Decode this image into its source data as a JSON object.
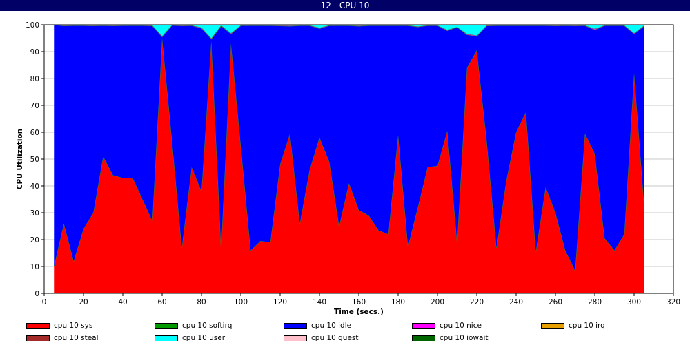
{
  "window": {
    "title": "12 - CPU 10"
  },
  "chart_data": {
    "type": "area",
    "stacked": true,
    "title": "",
    "xlabel": "Time (secs.)",
    "ylabel": "CPU Utilization",
    "xlim": [
      0,
      320
    ],
    "ylim": [
      0,
      100
    ],
    "xticks": [
      0,
      20,
      40,
      60,
      80,
      100,
      120,
      140,
      160,
      180,
      200,
      220,
      240,
      260,
      280,
      300,
      320
    ],
    "yticks": [
      0,
      10,
      20,
      30,
      40,
      50,
      60,
      70,
      80,
      90,
      100
    ],
    "grid": "horizontal",
    "legend_position": "bottom",
    "x": [
      5,
      10,
      15,
      20,
      25,
      30,
      35,
      40,
      45,
      50,
      55,
      60,
      65,
      70,
      75,
      80,
      85,
      90,
      95,
      100,
      105,
      110,
      115,
      120,
      125,
      130,
      135,
      140,
      145,
      150,
      155,
      160,
      165,
      170,
      175,
      180,
      185,
      190,
      195,
      200,
      205,
      210,
      215,
      220,
      225,
      230,
      235,
      240,
      245,
      250,
      255,
      260,
      265,
      270,
      275,
      280,
      285,
      290,
      295,
      300,
      305
    ],
    "series": [
      {
        "name": "cpu 10 sys",
        "color": "#ff0000",
        "values": [
          10,
          26,
          12,
          24,
          30,
          51,
          44,
          43,
          43,
          35,
          27,
          95,
          57,
          17,
          47,
          38,
          94,
          17,
          93,
          55,
          16,
          19.5,
          19,
          48,
          59.5,
          26,
          46,
          58,
          49,
          25,
          41,
          31,
          29,
          23.5,
          22,
          59,
          17.5,
          32,
          47,
          47.5,
          60.5,
          19,
          84,
          90.5,
          57,
          17,
          42,
          60,
          67.5,
          15.5,
          39.5,
          30,
          16,
          8.5,
          59.5,
          52,
          20.5,
          16,
          22,
          82,
          34
        ]
      },
      {
        "name": "cpu 10 softirq",
        "color": "#009900",
        "values": [
          0,
          0,
          0,
          0,
          0,
          0,
          0,
          0,
          0,
          0,
          0,
          0,
          0,
          0,
          0,
          0,
          0,
          0,
          0,
          0,
          0,
          0,
          0,
          0,
          0,
          0,
          0,
          0,
          0,
          0,
          0,
          0,
          0,
          0,
          0,
          0,
          0,
          0,
          0,
          0,
          0,
          0,
          0,
          0,
          0,
          0,
          0,
          0,
          0,
          0,
          0,
          0,
          0,
          0,
          0,
          0,
          0,
          0,
          0,
          0,
          0
        ]
      },
      {
        "name": "cpu 10 idle",
        "color": "#0000ff",
        "values": [
          90,
          73.6,
          87.7,
          75.7,
          69.6,
          48.7,
          55.6,
          56.7,
          56.7,
          64.7,
          72.6,
          0.5,
          42.8,
          82.6,
          52.7,
          60.7,
          0.7,
          82.6,
          3.6,
          44.7,
          83.7,
          80.2,
          80.7,
          51.6,
          40,
          73.7,
          53.7,
          40.6,
          50.7,
          74.7,
          58.7,
          68.5,
          70.7,
          76.2,
          77.7,
          40.7,
          82.2,
          67.2,
          52.7,
          52.2,
          37.3,
          80.1,
          12.3,
          5.2,
          42.6,
          82.7,
          57.7,
          39.7,
          32.2,
          84.2,
          60.2,
          69.6,
          83.7,
          91.1,
          40.2,
          46.1,
          79.2,
          83.7,
          77.7,
          14.6,
          65.5
        ]
      },
      {
        "name": "cpu 10 nice",
        "color": "#ff00ff",
        "values": [
          0,
          0.2,
          0.1,
          0.1,
          0.2,
          0.1,
          0.2,
          0.1,
          0.1,
          0.1,
          0.2,
          0.3,
          0.1,
          0.2,
          0.1,
          0.3,
          0.3,
          0.2,
          0.3,
          0.1,
          0.1,
          0.1,
          0.1,
          0.2,
          0.2,
          0.1,
          0.1,
          0.3,
          0.1,
          0.1,
          0.1,
          0.2,
          0.1,
          0.1,
          0.1,
          0.1,
          0.1,
          0.2,
          0.1,
          0.1,
          0.3,
          0.1,
          0.3,
          0.3,
          0.2,
          0.1,
          0.1,
          0.1,
          0.1,
          0.1,
          0.1,
          0.2,
          0.1,
          0.2,
          0.1,
          0.4,
          0.1,
          0.1,
          0.1,
          0.3,
          0.2
        ]
      },
      {
        "name": "cpu 10 irq",
        "color": "#e8a000",
        "values": [
          0,
          0,
          0,
          0,
          0,
          0,
          0,
          0,
          0,
          0,
          0,
          0,
          0,
          0,
          0,
          0,
          0,
          0,
          0,
          0,
          0,
          0,
          0,
          0,
          0,
          0,
          0,
          0,
          0,
          0,
          0,
          0,
          0,
          0,
          0,
          0,
          0,
          0,
          0,
          0,
          0,
          0,
          0,
          0,
          0,
          0,
          0,
          0,
          0,
          0,
          0,
          0,
          0,
          0,
          0,
          0,
          0,
          0,
          0,
          0,
          0
        ]
      },
      {
        "name": "cpu 10 steal",
        "color": "#a52a2a",
        "values": [
          0,
          0,
          0,
          0,
          0,
          0,
          0,
          0,
          0,
          0,
          0,
          0,
          0,
          0,
          0,
          0,
          0,
          0,
          0,
          0,
          0,
          0,
          0,
          0,
          0,
          0,
          0,
          0,
          0,
          0,
          0,
          0,
          0,
          0,
          0,
          0,
          0,
          0,
          0,
          0,
          0,
          0,
          0,
          0,
          0,
          0,
          0,
          0,
          0,
          0,
          0,
          0,
          0,
          0,
          0,
          0,
          0,
          0,
          0,
          0,
          0
        ]
      },
      {
        "name": "cpu 10 user",
        "color": "#00ffff",
        "values": [
          0,
          0.2,
          0.2,
          0.2,
          0.2,
          0.2,
          0.2,
          0.2,
          0.2,
          0.2,
          0.2,
          4.2,
          0.1,
          0.2,
          0.2,
          1,
          5,
          0.2,
          3.1,
          0.2,
          0.2,
          0.2,
          0.2,
          0.2,
          0.3,
          0.2,
          0.2,
          1.1,
          0.2,
          0.2,
          0.2,
          0.3,
          0.2,
          0.2,
          0.2,
          0.2,
          0.2,
          0.6,
          0.2,
          0.2,
          1.9,
          0.8,
          3.4,
          4,
          0.2,
          0.2,
          0.2,
          0.2,
          0.2,
          0.2,
          0.2,
          0.2,
          0.2,
          0.2,
          0.2,
          1.5,
          0.2,
          0.2,
          0.2,
          3.1,
          0.3
        ]
      },
      {
        "name": "cpu 10 guest",
        "color": "#ffc0cb",
        "values": [
          0,
          0,
          0,
          0,
          0,
          0,
          0,
          0,
          0,
          0,
          0,
          0,
          0,
          0,
          0,
          0,
          0,
          0,
          0,
          0,
          0,
          0,
          0,
          0,
          0,
          0,
          0,
          0,
          0,
          0,
          0,
          0,
          0,
          0,
          0,
          0,
          0,
          0,
          0,
          0,
          0,
          0,
          0,
          0,
          0,
          0,
          0,
          0,
          0,
          0,
          0,
          0,
          0,
          0,
          0,
          0,
          0,
          0,
          0,
          0,
          0
        ]
      },
      {
        "name": "cpu 10 iowait",
        "color": "#006600",
        "values": [
          0,
          0,
          0,
          0,
          0,
          0,
          0,
          0,
          0,
          0,
          0,
          0,
          0,
          0,
          0,
          0,
          0,
          0,
          0,
          0,
          0,
          0,
          0,
          0,
          0,
          0,
          0,
          0,
          0,
          0,
          0,
          0,
          0,
          0,
          0,
          0,
          0,
          0,
          0,
          0,
          0,
          0,
          0,
          0,
          0,
          0,
          0,
          0,
          0,
          0,
          0,
          0,
          0,
          0,
          0,
          0,
          0,
          0,
          0,
          0,
          0
        ]
      }
    ]
  }
}
